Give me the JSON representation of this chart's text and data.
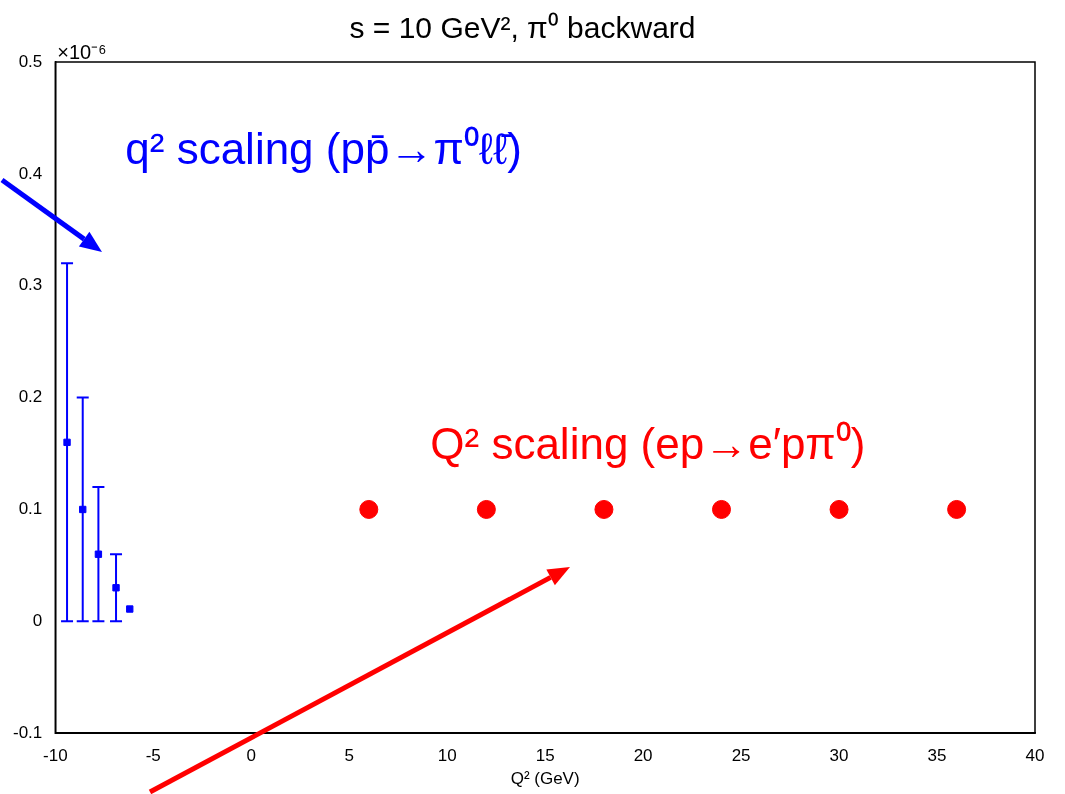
{
  "chart_data": {
    "type": "scatter",
    "title": "s = 10 GeV², π⁰ backward",
    "xlabel": "Q² (GeV)",
    "annotations": [
      "×10⁻⁶",
      "q² scaling  (pp̄→π⁰ℓℓ̄)",
      "Q² scaling  (ep→e′pπ⁰)"
    ],
    "xlim": [
      -10,
      40
    ],
    "xticks": [
      -10,
      -5,
      0,
      5,
      10,
      15,
      20,
      25,
      30,
      35,
      40
    ],
    "ylim": [
      -0.1,
      0.5
    ],
    "yticks": [
      -0.1,
      0,
      0.1,
      0.2,
      0.3,
      0.4,
      0.5
    ],
    "grid": false,
    "legend": false,
    "series": [
      {
        "color": "#0000ff",
        "marker": "square",
        "x": [
          -9.4,
          -8.6,
          -7.8,
          -6.9,
          -6.2
        ],
        "values": [
          0.16,
          0.1,
          0.06,
          0.03,
          0.011
        ],
        "errors": [
          0.16,
          0.1,
          0.06,
          0.03,
          null
        ]
      },
      {
        "color": "#ff0000",
        "marker": "circle",
        "x": [
          6,
          12,
          18,
          24,
          30,
          36
        ],
        "values": [
          0.1,
          0.1,
          0.1,
          0.1,
          0.1,
          0.1
        ]
      }
    ]
  }
}
